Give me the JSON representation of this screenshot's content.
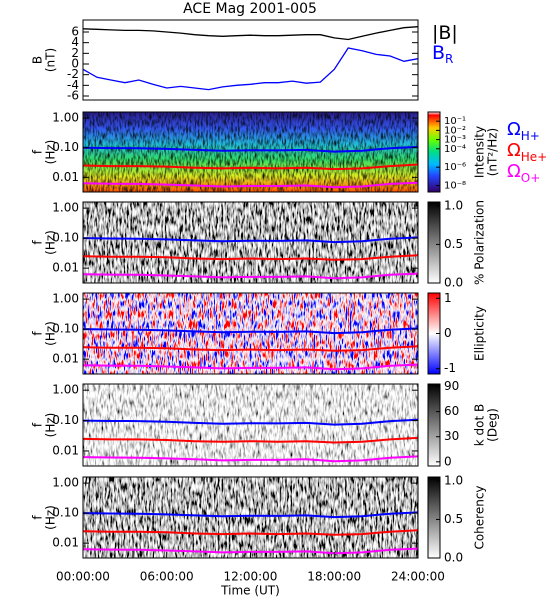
{
  "chart_data": [
    {
      "type": "line",
      "title": "ACE Mag 2001-005",
      "ylabel": [
        "B",
        "(nT)"
      ],
      "x": [
        0,
        1,
        2,
        3,
        4,
        5,
        6,
        7,
        8,
        9,
        10,
        11,
        12,
        13,
        14,
        15,
        16,
        17,
        18,
        19,
        20,
        21,
        22,
        23,
        24
      ],
      "xlim": [
        0,
        24
      ],
      "ylim": [
        -6.75,
        8.25
      ],
      "yticks": [
        -6,
        -4,
        -2,
        0,
        2,
        4,
        6
      ],
      "series": [
        {
          "name": "|B|",
          "color": "#000000",
          "values": [
            6.6,
            6.5,
            6.4,
            6.3,
            6.3,
            6.2,
            6.0,
            5.8,
            5.5,
            5.3,
            5.2,
            5.3,
            5.4,
            5.3,
            5.3,
            5.4,
            5.5,
            5.5,
            4.9,
            4.6,
            5.2,
            5.8,
            6.3,
            6.8,
            7.0
          ]
        },
        {
          "name": "B",
          "subscript": "R",
          "color": "#0000ff",
          "values": [
            -1.0,
            -2.5,
            -3.0,
            -3.5,
            -3.0,
            -3.8,
            -4.5,
            -4.2,
            -4.5,
            -4.8,
            -4.3,
            -4.0,
            -3.8,
            -3.5,
            -3.5,
            -3.2,
            -3.6,
            -3.4,
            -1.0,
            3.0,
            2.5,
            1.8,
            1.5,
            0.5,
            1.0
          ]
        }
      ]
    },
    {
      "type": "spectrogram",
      "ylabel": [
        "f",
        "(Hz)"
      ],
      "log_y": true,
      "colormap": "rainbow",
      "x": [
        0,
        2,
        4,
        6,
        8,
        10,
        12,
        14,
        16,
        18,
        20,
        22,
        24
      ],
      "xlim": [
        0,
        24
      ],
      "ylim": [
        0.0032,
        1.6
      ],
      "yticks": [
        {
          "value": 1,
          "label": "1.00"
        },
        {
          "value": 0.1,
          "label": "0.10"
        },
        {
          "value": 0.01,
          "label": "0.01"
        }
      ],
      "clabel": [
        "Intensity",
        "(nT²/Hz)"
      ],
      "clog": true,
      "clim": [
        2e-09,
        1
      ],
      "cticks": [
        {
          "value": 0.1,
          "label": "10⁻¹"
        },
        {
          "value": 0.01,
          "label": "10⁻²"
        },
        {
          "value": 0.001,
          "label": "10⁻³"
        },
        {
          "value": 0.0001,
          "label": "10⁻⁴"
        },
        {
          "value": 1e-06,
          "label": "10⁻⁶"
        },
        {
          "value": 1e-08,
          "label": "10⁻⁸"
        }
      ],
      "series": [
        {
          "name": "Ω",
          "subscript": "H+",
          "color": "#0000ff",
          "values": [
            0.1,
            0.097,
            0.096,
            0.091,
            0.084,
            0.079,
            0.082,
            0.081,
            0.084,
            0.074,
            0.079,
            0.096,
            0.106
          ]
        },
        {
          "name": "Ω",
          "subscript": "He+",
          "color": "#ff0000",
          "values": [
            0.025,
            0.024,
            0.024,
            0.023,
            0.021,
            0.02,
            0.021,
            0.02,
            0.021,
            0.019,
            0.02,
            0.024,
            0.027
          ]
        },
        {
          "name": "Ω",
          "subscript": "O+",
          "color": "#ff00ff",
          "values": [
            0.0063,
            0.0061,
            0.006,
            0.0057,
            0.0053,
            0.0049,
            0.0051,
            0.0051,
            0.0053,
            0.0046,
            0.0049,
            0.006,
            0.0066
          ]
        }
      ]
    },
    {
      "type": "spectrogram",
      "ylabel": [
        "f",
        "(Hz)"
      ],
      "log_y": true,
      "colormap": "gray",
      "x": [
        0,
        2,
        4,
        6,
        8,
        10,
        12,
        14,
        16,
        18,
        20,
        22,
        24
      ],
      "xlim": [
        0,
        24
      ],
      "ylim": [
        0.0032,
        1.6
      ],
      "yticks": [
        {
          "value": 1,
          "label": "1.00"
        },
        {
          "value": 0.1,
          "label": "0.10"
        },
        {
          "value": 0.01,
          "label": "0.01"
        }
      ],
      "clabel": [
        "% Polarization"
      ],
      "clim": [
        0,
        1.05
      ],
      "cticks": [
        {
          "value": 0,
          "label": "0.0"
        },
        0.5,
        {
          "value": 1,
          "label": "1.0"
        }
      ],
      "series": [
        {
          "color": "#0000ff",
          "values": [
            0.1,
            0.097,
            0.096,
            0.091,
            0.084,
            0.079,
            0.082,
            0.081,
            0.084,
            0.074,
            0.079,
            0.096,
            0.106
          ]
        },
        {
          "color": "#ff0000",
          "values": [
            0.025,
            0.024,
            0.024,
            0.023,
            0.021,
            0.02,
            0.021,
            0.02,
            0.021,
            0.019,
            0.02,
            0.024,
            0.027
          ]
        },
        {
          "color": "#ff00ff",
          "values": [
            0.0063,
            0.0061,
            0.006,
            0.0057,
            0.0053,
            0.0049,
            0.0051,
            0.0051,
            0.0053,
            0.0046,
            0.0049,
            0.006,
            0.0066
          ]
        }
      ]
    },
    {
      "type": "spectrogram",
      "ylabel": [
        "f",
        "(Hz)"
      ],
      "log_y": true,
      "colormap": "red-blue",
      "x": [
        0,
        2,
        4,
        6,
        8,
        10,
        12,
        14,
        16,
        18,
        20,
        22,
        24
      ],
      "xlim": [
        0,
        24
      ],
      "ylim": [
        0.0032,
        1.6
      ],
      "yticks": [
        {
          "value": 1,
          "label": "1.00"
        },
        {
          "value": 0.1,
          "label": "0.10"
        },
        {
          "value": 0.01,
          "label": "0.01"
        }
      ],
      "clabel": [
        "Ellipticity"
      ],
      "clim": [
        -1.15,
        1.15
      ],
      "cticks": [
        -1,
        0,
        1
      ],
      "series": [
        {
          "color": "#0000ff",
          "values": [
            0.1,
            0.097,
            0.096,
            0.091,
            0.084,
            0.079,
            0.082,
            0.081,
            0.084,
            0.074,
            0.079,
            0.096,
            0.106
          ]
        },
        {
          "color": "#ff0000",
          "values": [
            0.025,
            0.024,
            0.024,
            0.023,
            0.021,
            0.02,
            0.021,
            0.02,
            0.021,
            0.019,
            0.02,
            0.024,
            0.027
          ]
        },
        {
          "color": "#ff00ff",
          "values": [
            0.0063,
            0.0061,
            0.006,
            0.0057,
            0.0053,
            0.0049,
            0.0051,
            0.0051,
            0.0053,
            0.0046,
            0.0049,
            0.006,
            0.0066
          ]
        }
      ]
    },
    {
      "type": "spectrogram",
      "ylabel": [
        "f",
        "(Hz)"
      ],
      "log_y": true,
      "colormap": "gray-light",
      "x": [
        0,
        2,
        4,
        6,
        8,
        10,
        12,
        14,
        16,
        18,
        20,
        22,
        24
      ],
      "xlim": [
        0,
        24
      ],
      "ylim": [
        0.0032,
        1.6
      ],
      "yticks": [
        {
          "value": 1,
          "label": "1.00"
        },
        {
          "value": 0.1,
          "label": "0.10"
        },
        {
          "value": 0.01,
          "label": "0.01"
        }
      ],
      "clabel": [
        "k dot B",
        "(Deg)"
      ],
      "clim": [
        -5,
        93
      ],
      "cticks": [
        0,
        30,
        60,
        90
      ],
      "series": [
        {
          "color": "#0000ff",
          "values": [
            0.1,
            0.097,
            0.096,
            0.091,
            0.084,
            0.079,
            0.082,
            0.081,
            0.084,
            0.074,
            0.079,
            0.096,
            0.106
          ]
        },
        {
          "color": "#ff0000",
          "values": [
            0.025,
            0.024,
            0.024,
            0.023,
            0.021,
            0.02,
            0.021,
            0.02,
            0.021,
            0.019,
            0.02,
            0.024,
            0.027
          ]
        },
        {
          "color": "#ff00ff",
          "values": [
            0.0063,
            0.0061,
            0.006,
            0.0057,
            0.0053,
            0.0049,
            0.0051,
            0.0051,
            0.0053,
            0.0046,
            0.0049,
            0.006,
            0.0066
          ]
        }
      ]
    },
    {
      "type": "spectrogram",
      "ylabel": [
        "f",
        "(Hz)"
      ],
      "log_y": true,
      "colormap": "gray",
      "x": [
        0,
        2,
        4,
        6,
        8,
        10,
        12,
        14,
        16,
        18,
        20,
        22,
        24
      ],
      "xlim": [
        0,
        24
      ],
      "ylim": [
        0.0032,
        1.6
      ],
      "yticks": [
        {
          "value": 1,
          "label": "1.00"
        },
        {
          "value": 0.1,
          "label": "0.10"
        },
        {
          "value": 0.01,
          "label": "0.01"
        }
      ],
      "clabel": [
        "Coherency"
      ],
      "clim": [
        0,
        1.05
      ],
      "cticks": [
        {
          "value": 0,
          "label": "0.0"
        },
        0.5,
        {
          "value": 1,
          "label": "1.0"
        }
      ],
      "xlabel": "Time (UT)",
      "xticks": [
        {
          "value": 0,
          "label": "00:00:00"
        },
        {
          "value": 6,
          "label": "06:00:00"
        },
        {
          "value": 12,
          "label": "12:00:00"
        },
        {
          "value": 18,
          "label": "18:00:00"
        },
        {
          "value": 24,
          "label": "24:00:00"
        }
      ],
      "series": [
        {
          "color": "#0000ff",
          "values": [
            0.1,
            0.097,
            0.096,
            0.091,
            0.084,
            0.079,
            0.082,
            0.081,
            0.084,
            0.074,
            0.079,
            0.096,
            0.106
          ]
        },
        {
          "color": "#ff0000",
          "values": [
            0.025,
            0.024,
            0.024,
            0.023,
            0.021,
            0.02,
            0.021,
            0.02,
            0.021,
            0.019,
            0.02,
            0.024,
            0.027
          ]
        },
        {
          "color": "#ff00ff",
          "values": [
            0.0063,
            0.0061,
            0.006,
            0.0057,
            0.0053,
            0.0049,
            0.0051,
            0.0051,
            0.0053,
            0.0046,
            0.0049,
            0.006,
            0.0066
          ]
        }
      ]
    }
  ]
}
